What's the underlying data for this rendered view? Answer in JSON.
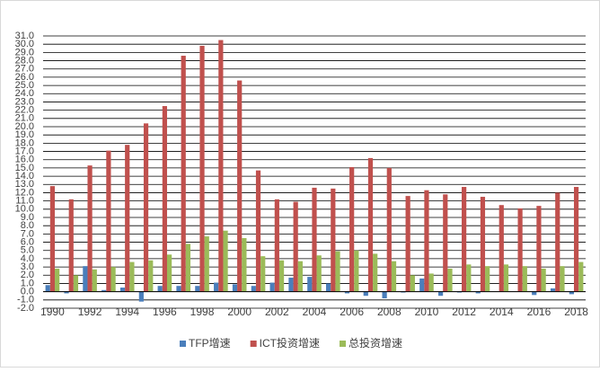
{
  "chart_data": {
    "type": "bar",
    "categories": [
      "1990",
      null,
      "1992",
      null,
      "1994",
      null,
      "1996",
      null,
      "1998",
      null,
      "2000",
      null,
      "2002",
      null,
      "2004",
      null,
      "2006",
      null,
      "2008",
      null,
      "2010",
      null,
      "2012",
      null,
      "2014",
      null,
      "2016",
      null,
      "2018"
    ],
    "series": [
      {
        "name": "TFP增速",
        "color": "#4a7ebb",
        "values": [
          0.8,
          -0.2,
          3.1,
          0.2,
          0.5,
          -1.2,
          0.7,
          0.7,
          0.7,
          1.1,
          0.9,
          0.7,
          1.1,
          1.7,
          1.8,
          1.0,
          -0.2,
          -0.5,
          -0.8,
          -0.1,
          1.6,
          -0.5,
          -0.1,
          -0.2,
          0.0,
          0.0,
          -0.4,
          0.4,
          -0.3
        ]
      },
      {
        "name": "ICT投资增速",
        "color": "#c0504d",
        "values": [
          12.8,
          11.2,
          15.3,
          17.1,
          17.8,
          20.4,
          22.5,
          28.6,
          29.8,
          30.5,
          25.6,
          14.7,
          11.2,
          10.9,
          12.6,
          12.5,
          15.1,
          16.2,
          15.0,
          11.6,
          12.3,
          11.8,
          12.7,
          11.5,
          10.5,
          10.1,
          10.4,
          12.0,
          12.7
        ]
      },
      {
        "name": "总投资增速",
        "color": "#9bbb59",
        "values": [
          2.8,
          2.0,
          2.7,
          3.0,
          3.6,
          3.8,
          4.5,
          5.8,
          6.7,
          7.4,
          6.5,
          4.3,
          3.8,
          3.7,
          4.4,
          4.9,
          5.0,
          4.6,
          3.7,
          2.0,
          2.2,
          2.8,
          3.3,
          3.1,
          3.3,
          3.1,
          2.8,
          3.1,
          3.6
        ]
      }
    ],
    "ylim": [
      -2,
      31
    ],
    "yticks": [
      {
        "value": -2,
        "label": "-2.0"
      },
      {
        "value": -1,
        "label": "-1.0"
      },
      {
        "value": 0,
        "label": "0.0"
      },
      {
        "value": 1,
        "label": "1.0"
      },
      {
        "value": 2,
        "label": "2.0"
      },
      {
        "value": 3,
        "label": "3.0"
      },
      {
        "value": 4,
        "label": "4.0"
      },
      {
        "value": 5,
        "label": "5.0"
      },
      {
        "value": 6,
        "label": "6.0"
      },
      {
        "value": 7,
        "label": "7.0"
      },
      {
        "value": 8,
        "label": "8.0"
      },
      {
        "value": 9,
        "label": "9.0"
      },
      {
        "value": 10,
        "label": "10.0"
      },
      {
        "value": 11,
        "label": "11.0"
      },
      {
        "value": 12,
        "label": "12.0"
      },
      {
        "value": 13,
        "label": "13.0"
      },
      {
        "value": 14,
        "label": "14.0"
      },
      {
        "value": 15,
        "label": "15.0"
      },
      {
        "value": 16,
        "label": "16.0"
      },
      {
        "value": 17,
        "label": "17.0"
      },
      {
        "value": 18,
        "label": "18.0"
      },
      {
        "value": 19,
        "label": "19.0"
      },
      {
        "value": 20,
        "label": "20.0"
      },
      {
        "value": 21,
        "label": "21.0"
      },
      {
        "value": 22,
        "label": "22.0"
      },
      {
        "value": 23,
        "label": "23.0"
      },
      {
        "value": 24,
        "label": "24.0"
      },
      {
        "value": 25,
        "label": "25.0"
      },
      {
        "value": 26,
        "label": "26.0"
      },
      {
        "value": 27,
        "label": "27.0"
      },
      {
        "value": 28,
        "label": "28.0"
      },
      {
        "value": 29,
        "label": "29.0"
      },
      {
        "value": 30,
        "label": "30.0"
      },
      {
        "value": 31,
        "label": "31.0"
      }
    ],
    "grid": true,
    "legend": "bottom"
  }
}
